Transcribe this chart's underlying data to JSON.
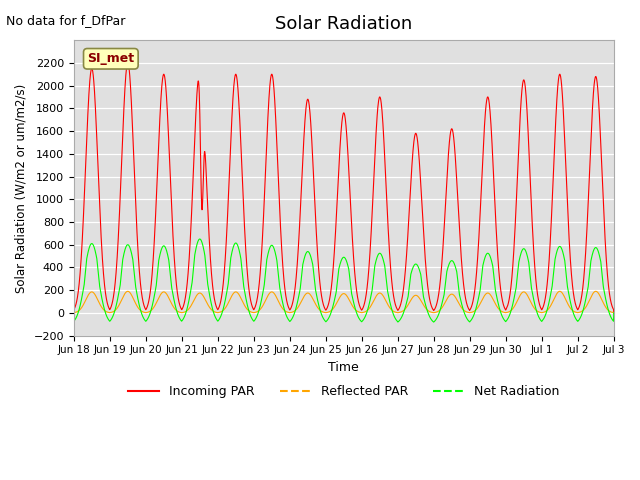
{
  "title": "Solar Radiation",
  "subtitle": "No data for f_DfPar",
  "xlabel": "Time",
  "ylabel": "Solar Radiation (W/m2 or um/m2/s)",
  "ylim": [
    -200,
    2400
  ],
  "yticks": [
    -200,
    0,
    200,
    400,
    600,
    800,
    1000,
    1200,
    1400,
    1600,
    1800,
    2000,
    2200
  ],
  "bg_color": "#e0e0e0",
  "annotation_box": "SI_met",
  "annotation_box_color": "#ffffbb",
  "annotation_box_border": "#888844",
  "tick_labels": [
    "Jun 18",
    "Jun 19",
    "Jun 20",
    "Jun 21",
    "Jun 22",
    "Jun 23",
    "Jun 24",
    "Jun 25",
    "Jun 26",
    "Jun 27",
    "Jun 28",
    "Jun 29",
    "Jun 30",
    "Jul 1",
    "Jul 2",
    "Jul 3"
  ],
  "n_days": 15,
  "points_per_day": 200,
  "incoming_peaks": [
    2150,
    2200,
    2100,
    2150,
    2100,
    2100,
    1880,
    1760,
    1900,
    1580,
    1620,
    1900,
    2050,
    2100,
    2080
  ],
  "reflected_peaks": [
    185,
    190,
    185,
    175,
    185,
    185,
    175,
    170,
    175,
    155,
    165,
    175,
    185,
    190,
    190
  ],
  "net_peaks": [
    610,
    600,
    590,
    650,
    615,
    595,
    540,
    490,
    525,
    430,
    460,
    525,
    565,
    585,
    575
  ],
  "net_min": -100
}
